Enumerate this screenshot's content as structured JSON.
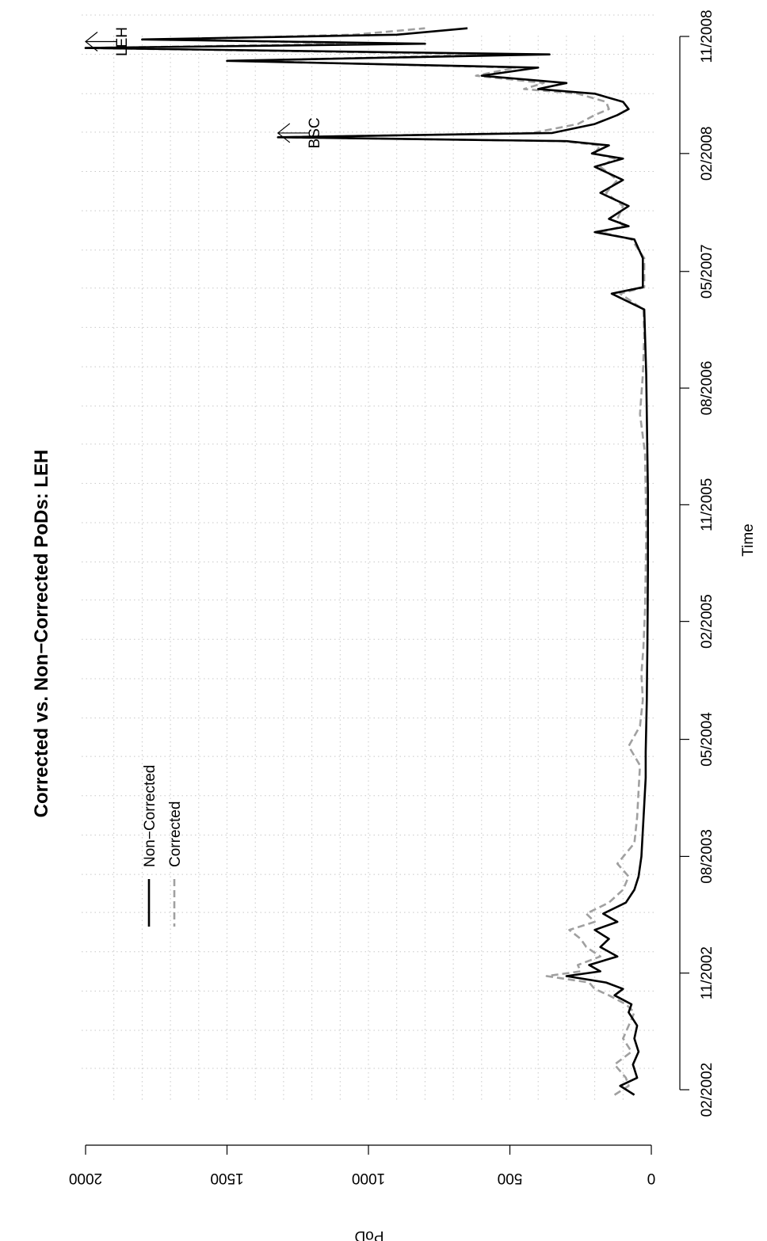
{
  "chart_data": {
    "type": "line",
    "title": "Corrected vs. Non−Corrected PoDs: LEH",
    "xlabel": "Time",
    "ylabel": "PoD",
    "orientation": "rotated 90 degrees clockwise (time axis runs top-to-bottom on page, PoD axis runs right-to-left)",
    "ylim": [
      0,
      2000
    ],
    "y_ticks": [
      "0",
      "500",
      "1000",
      "1500",
      "2000"
    ],
    "x_ticks": [
      "02/2002",
      "11/2002",
      "08/2003",
      "05/2004",
      "02/2005",
      "11/2005",
      "08/2006",
      "05/2007",
      "02/2008",
      "11/2008"
    ],
    "grid": true,
    "legend_placement": "upper-left of plot area",
    "annotations": [
      {
        "text": "LEH",
        "date": "2008-10",
        "value": 2000
      },
      {
        "text": "BSC",
        "date": "2008-03",
        "value": 1320
      }
    ],
    "series": [
      {
        "name": "Non−Corrected",
        "color": "#000000",
        "style": "solid",
        "points": [
          [
            "2002-01-20",
            60
          ],
          [
            "2002-02-10",
            110
          ],
          [
            "2002-03-01",
            50
          ],
          [
            "2002-04-01",
            65
          ],
          [
            "2002-05-01",
            45
          ],
          [
            "2002-06-01",
            60
          ],
          [
            "2002-07-01",
            50
          ],
          [
            "2002-08-01",
            80
          ],
          [
            "2002-08-20",
            70
          ],
          [
            "2002-09-10",
            130
          ],
          [
            "2002-09-25",
            100
          ],
          [
            "2002-10-10",
            160
          ],
          [
            "2002-10-25",
            300
          ],
          [
            "2002-11-05",
            180
          ],
          [
            "2002-11-20",
            220
          ],
          [
            "2002-12-10",
            120
          ],
          [
            "2003-01-01",
            180
          ],
          [
            "2003-01-20",
            150
          ],
          [
            "2003-02-10",
            200
          ],
          [
            "2003-03-01",
            120
          ],
          [
            "2003-03-20",
            170
          ],
          [
            "2003-04-15",
            90
          ],
          [
            "2003-05-15",
            60
          ],
          [
            "2003-06-15",
            45
          ],
          [
            "2003-08-01",
            35
          ],
          [
            "2003-10-01",
            30
          ],
          [
            "2003-12-01",
            25
          ],
          [
            "2004-02-01",
            20
          ],
          [
            "2004-04-01",
            20
          ],
          [
            "2004-06-01",
            18
          ],
          [
            "2004-08-01",
            16
          ],
          [
            "2004-10-01",
            15
          ],
          [
            "2004-12-01",
            14
          ],
          [
            "2005-03-01",
            13
          ],
          [
            "2005-06-01",
            12
          ],
          [
            "2005-09-01",
            12
          ],
          [
            "2005-12-01",
            12
          ],
          [
            "2006-03-01",
            14
          ],
          [
            "2006-06-01",
            16
          ],
          [
            "2006-09-01",
            18
          ],
          [
            "2006-12-01",
            22
          ],
          [
            "2007-02-01",
            25
          ],
          [
            "2007-03-10",
            140
          ],
          [
            "2007-03-25",
            30
          ],
          [
            "2007-06-01",
            30
          ],
          [
            "2007-07-15",
            60
          ],
          [
            "2007-08-01",
            200
          ],
          [
            "2007-08-15",
            80
          ],
          [
            "2007-09-01",
            150
          ],
          [
            "2007-10-01",
            80
          ],
          [
            "2007-11-01",
            180
          ],
          [
            "2007-12-01",
            100
          ],
          [
            "2008-01-01",
            200
          ],
          [
            "2008-01-20",
            100
          ],
          [
            "2008-02-01",
            210
          ],
          [
            "2008-02-20",
            150
          ],
          [
            "2008-03-01",
            300
          ],
          [
            "2008-03-10",
            1320
          ],
          [
            "2008-03-20",
            350
          ],
          [
            "2008-04-10",
            200
          ],
          [
            "2008-05-01",
            120
          ],
          [
            "2008-05-15",
            80
          ],
          [
            "2008-06-01",
            100
          ],
          [
            "2008-06-20",
            200
          ],
          [
            "2008-07-01",
            400
          ],
          [
            "2008-07-15",
            300
          ],
          [
            "2008-08-01",
            600
          ],
          [
            "2008-08-20",
            400
          ],
          [
            "2008-09-05",
            1500
          ],
          [
            "2008-09-20",
            360
          ],
          [
            "2008-10-05",
            2000
          ],
          [
            "2008-10-15",
            800
          ],
          [
            "2008-10-25",
            1800
          ],
          [
            "2008-11-05",
            900
          ],
          [
            "2008-11-20",
            650
          ]
        ]
      },
      {
        "name": "Corrected",
        "color": "#a0a0a0",
        "style": "dashed",
        "points": [
          [
            "2002-01-20",
            130
          ],
          [
            "2002-02-10",
            80
          ],
          [
            "2002-03-01",
            90
          ],
          [
            "2002-04-01",
            130
          ],
          [
            "2002-05-01",
            70
          ],
          [
            "2002-06-01",
            100
          ],
          [
            "2002-07-01",
            80
          ],
          [
            "2002-08-01",
            60
          ],
          [
            "2002-08-20",
            90
          ],
          [
            "2002-09-10",
            150
          ],
          [
            "2002-09-25",
            200
          ],
          [
            "2002-10-10",
            220
          ],
          [
            "2002-10-25",
            370
          ],
          [
            "2002-11-05",
            250
          ],
          [
            "2002-11-20",
            260
          ],
          [
            "2002-12-10",
            180
          ],
          [
            "2003-01-01",
            230
          ],
          [
            "2003-01-20",
            250
          ],
          [
            "2003-02-10",
            290
          ],
          [
            "2003-03-01",
            200
          ],
          [
            "2003-03-20",
            230
          ],
          [
            "2003-04-15",
            150
          ],
          [
            "2003-05-15",
            100
          ],
          [
            "2003-06-15",
            80
          ],
          [
            "2003-07-15",
            120
          ],
          [
            "2003-09-01",
            60
          ],
          [
            "2003-11-01",
            50
          ],
          [
            "2004-01-01",
            45
          ],
          [
            "2004-03-01",
            40
          ],
          [
            "2004-04-15",
            80
          ],
          [
            "2004-06-01",
            40
          ],
          [
            "2004-08-01",
            30
          ],
          [
            "2004-10-01",
            35
          ],
          [
            "2004-12-01",
            28
          ],
          [
            "2005-03-01",
            22
          ],
          [
            "2005-06-01",
            20
          ],
          [
            "2005-09-01",
            18
          ],
          [
            "2005-12-01",
            20
          ],
          [
            "2006-03-01",
            22
          ],
          [
            "2006-06-01",
            40
          ],
          [
            "2006-09-01",
            30
          ],
          [
            "2006-12-01",
            25
          ],
          [
            "2007-02-01",
            28
          ],
          [
            "2007-03-10",
            110
          ],
          [
            "2007-03-25",
            25
          ],
          [
            "2007-06-01",
            25
          ],
          [
            "2007-07-15",
            70
          ],
          [
            "2007-08-01",
            180
          ],
          [
            "2007-08-15",
            100
          ],
          [
            "2007-09-01",
            120
          ],
          [
            "2007-10-01",
            100
          ],
          [
            "2007-11-01",
            160
          ],
          [
            "2007-12-01",
            120
          ],
          [
            "2008-01-01",
            180
          ],
          [
            "2008-01-20",
            130
          ],
          [
            "2008-02-01",
            200
          ],
          [
            "2008-02-20",
            180
          ],
          [
            "2008-03-01",
            320
          ],
          [
            "2008-03-10",
            1300
          ],
          [
            "2008-03-20",
            420
          ],
          [
            "2008-04-10",
            260
          ],
          [
            "2008-05-01",
            200
          ],
          [
            "2008-05-15",
            150
          ],
          [
            "2008-06-01",
            160
          ],
          [
            "2008-06-20",
            260
          ],
          [
            "2008-07-01",
            450
          ],
          [
            "2008-07-15",
            380
          ],
          [
            "2008-08-01",
            620
          ],
          [
            "2008-08-20",
            480
          ],
          [
            "2008-09-05",
            1450
          ],
          [
            "2008-09-20",
            520
          ],
          [
            "2008-10-05",
            2000
          ],
          [
            "2008-10-15",
            1000
          ],
          [
            "2008-10-25",
            1700
          ],
          [
            "2008-11-05",
            1050
          ],
          [
            "2008-11-20",
            800
          ]
        ]
      }
    ]
  }
}
